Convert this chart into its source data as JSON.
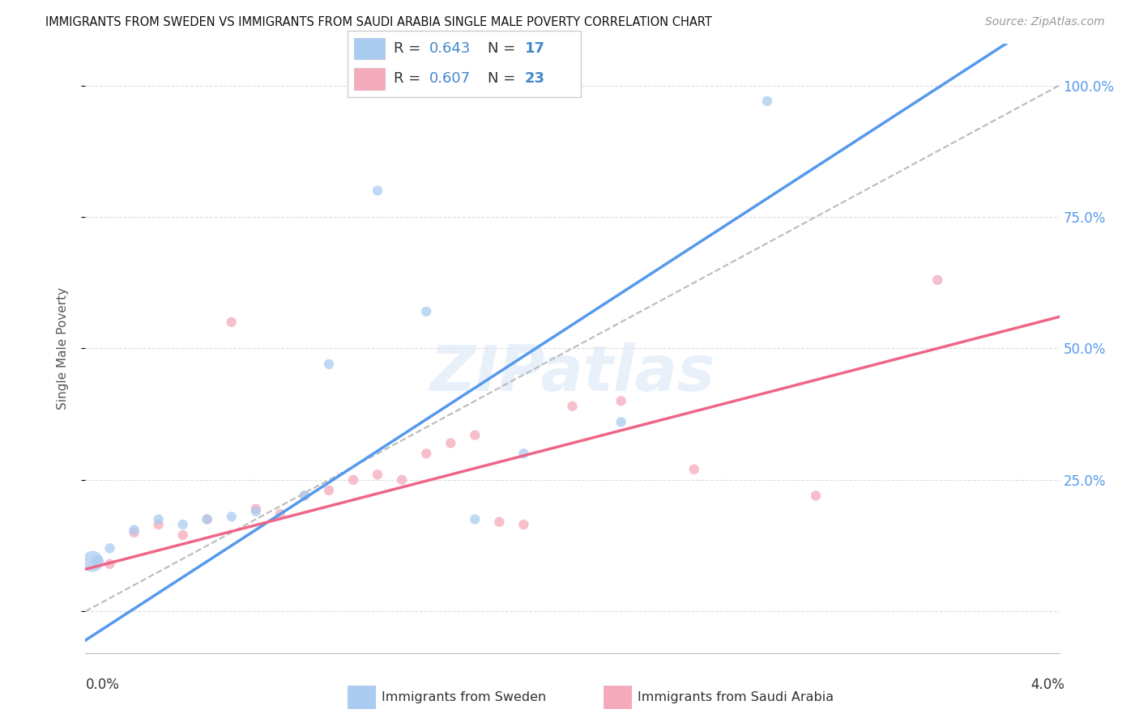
{
  "title": "IMMIGRANTS FROM SWEDEN VS IMMIGRANTS FROM SAUDI ARABIA SINGLE MALE POVERTY CORRELATION CHART",
  "source": "Source: ZipAtlas.com",
  "ylabel": "Single Male Poverty",
  "xlim": [
    0.0,
    0.04
  ],
  "ylim": [
    -0.08,
    1.08
  ],
  "yticks": [
    0.0,
    0.25,
    0.5,
    0.75,
    1.0
  ],
  "ytick_labels": [
    "",
    "25.0%",
    "50.0%",
    "75.0%",
    "100.0%"
  ],
  "sweden_color": "#aaccf0",
  "saudi_color": "#f5aabb",
  "sweden_line_color": "#5599ee",
  "saudi_line_color": "#ee6688",
  "diagonal_color": "#bbbbbb",
  "right_axis_color": "#5599ee",
  "background_color": "#ffffff",
  "grid_color": "#dddddd",
  "sweden_x": [
    0.0003,
    0.0005,
    0.001,
    0.002,
    0.003,
    0.004,
    0.005,
    0.006,
    0.007,
    0.009,
    0.01,
    0.012,
    0.014,
    0.016,
    0.018,
    0.022,
    0.028
  ],
  "sweden_y": [
    0.095,
    0.095,
    0.12,
    0.155,
    0.175,
    0.165,
    0.175,
    0.18,
    0.19,
    0.22,
    0.47,
    0.8,
    0.57,
    0.175,
    0.3,
    0.36,
    0.97
  ],
  "sweden_sizes": [
    350,
    120,
    80,
    80,
    80,
    80,
    80,
    80,
    80,
    80,
    80,
    80,
    80,
    80,
    80,
    80,
    80
  ],
  "saudi_x": [
    0.001,
    0.002,
    0.003,
    0.004,
    0.005,
    0.006,
    0.007,
    0.008,
    0.009,
    0.01,
    0.011,
    0.012,
    0.013,
    0.014,
    0.015,
    0.016,
    0.017,
    0.018,
    0.02,
    0.022,
    0.025,
    0.03,
    0.035
  ],
  "saudi_y": [
    0.09,
    0.15,
    0.165,
    0.145,
    0.175,
    0.55,
    0.195,
    0.185,
    0.22,
    0.23,
    0.25,
    0.26,
    0.25,
    0.3,
    0.32,
    0.335,
    0.17,
    0.165,
    0.39,
    0.4,
    0.27,
    0.22,
    0.63
  ],
  "saudi_sizes": [
    80,
    80,
    80,
    80,
    80,
    80,
    80,
    80,
    80,
    80,
    80,
    80,
    80,
    80,
    80,
    80,
    80,
    80,
    80,
    80,
    80,
    80,
    80
  ],
  "sweden_R": "0.643",
  "sweden_N": "17",
  "saudi_R": "0.607",
  "saudi_N": "23",
  "legend_color": "#4488cc"
}
